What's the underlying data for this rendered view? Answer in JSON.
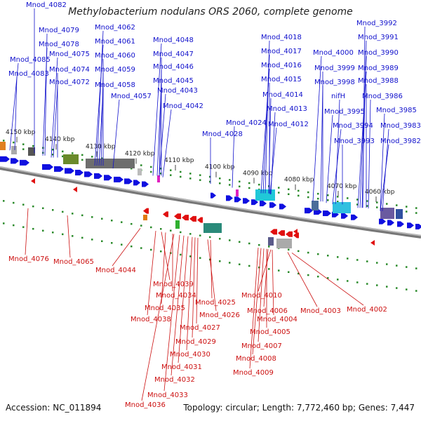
{
  "title": "Methylobacterium nodulans ORS 2060, complete genome",
  "footer": {
    "accession": "Accession: NC_011894",
    "topology": "Topology: circular; Length: 7,772,460 bp; Genes: 7,447"
  },
  "scale_labels": [
    "4150 kbp",
    "4140 kbp",
    "4130 kbp",
    "4120 kbp",
    "4110 kbp",
    "4100 kbp",
    "4090 kbp",
    "4080 kbp",
    "4070 kbp",
    "4060 kbp"
  ],
  "top_labels": [
    "Mnod_4082",
    "Mnod_4079",
    "Mnod_4078",
    "Mnod_4075",
    "Mnod_4085",
    "Mnod_4074",
    "Mnod_4083",
    "Mnod_4072",
    "Mnod_4062",
    "Mnod_4061",
    "Mnod_4060",
    "Mnod_4059",
    "Mnod_4058",
    "Mnod_4057",
    "Mnod_4048",
    "Mnod_4047",
    "Mnod_4046",
    "Mnod_4045",
    "Mnod_4043",
    "Mnod_4042",
    "Mnod_4028",
    "Mnod_4024",
    "Mnod_4018",
    "Mnod_4017",
    "Mnod_4016",
    "Mnod_4015",
    "Mnod_4014",
    "Mnod_4013",
    "Mnod_4012",
    "Mnod_4000",
    "Mnod_3999",
    "Mnod_3998",
    "nifH",
    "Mnod_3995",
    "Mnod_3994",
    "Mnod_3993",
    "Mnod_3992",
    "Mnod_3991",
    "Mnod_3990",
    "Mnod_3989",
    "Mnod_3988",
    "Mnod_3986",
    "Mnod_3985",
    "Mnod_3983",
    "Mnod_3982"
  ],
  "bottom_labels": [
    "Mnod_4076",
    "Mnod_4065",
    "Mnod_4044",
    "Mnod_4039",
    "Mnod_4034",
    "Mnod_4035",
    "Mnod_4038",
    "Mnod_4025",
    "Mnod_4026",
    "Mnod_4027",
    "Mnod_4029",
    "Mnod_4030",
    "Mnod_4031",
    "Mnod_4032",
    "Mnod_4033",
    "Mnod_4036",
    "Mnod_4010",
    "Mnod_4006",
    "Mnod_4004",
    "Mnod_4005",
    "Mnod_4007",
    "Mnod_4008",
    "Mnod_4009",
    "Mnod_4003",
    "Mnod_4002"
  ],
  "colors": {
    "forward_gene": "#1010e0",
    "reverse_gene": "#e01010",
    "top_label": "#1010cc",
    "bottom_label": "#cc1010",
    "backbone": "#888888",
    "tick": "#2a8a2a"
  }
}
